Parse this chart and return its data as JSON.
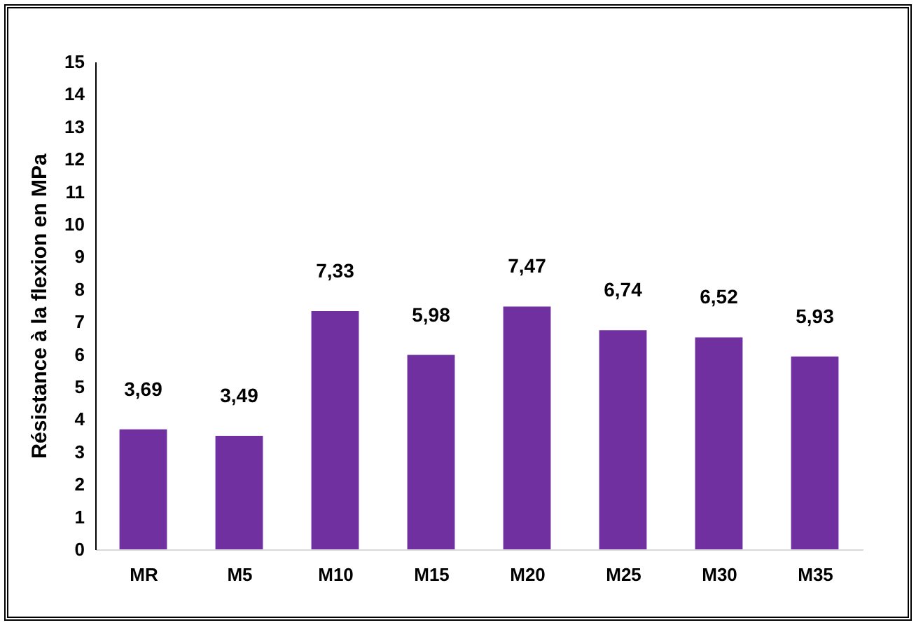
{
  "chart_data": {
    "type": "bar",
    "ylabel": "Résistance à la flexion en MPa",
    "categories": [
      "MR",
      "M5",
      "M10",
      "M15",
      "M20",
      "M25",
      "M30",
      "M35"
    ],
    "values": [
      3.69,
      3.49,
      7.33,
      5.98,
      7.47,
      6.74,
      6.52,
      5.93
    ],
    "value_labels": [
      "3,69",
      "3,49",
      "7,33",
      "5,98",
      "7,47",
      "6,74",
      "6,52",
      "5,93"
    ],
    "color": "#7030a0",
    "ylim": [
      0,
      15
    ],
    "yticks": [
      0,
      1,
      2,
      3,
      4,
      5,
      6,
      7,
      8,
      9,
      10,
      11,
      12,
      13,
      14,
      15
    ],
    "grid": false
  }
}
